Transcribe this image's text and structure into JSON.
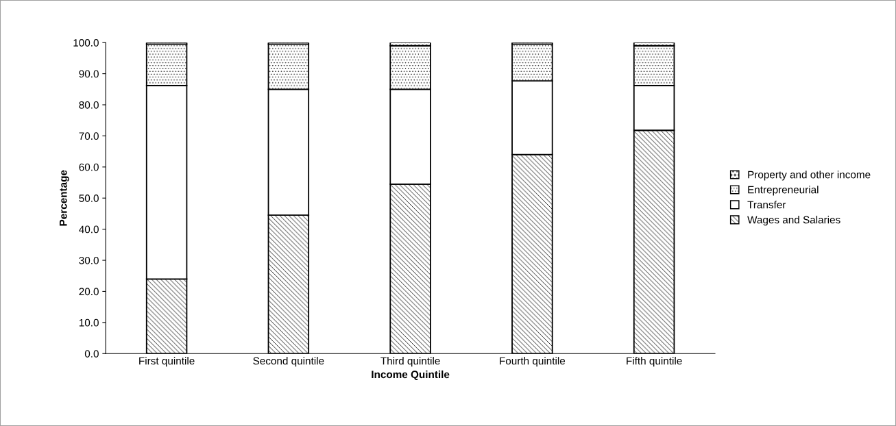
{
  "chart_data": {
    "type": "bar",
    "stacked": true,
    "xlabel": "Income Quintile",
    "ylabel": "Percentage",
    "categories": [
      "First quintile",
      "Second quintile",
      "Third quintile",
      "Fourth quintile",
      "Fifth quintile"
    ],
    "series": [
      {
        "name": "Wages and Salaries",
        "color": "#000000",
        "values": [
          24.0,
          44.5,
          54.5,
          64.0,
          71.8
        ]
      },
      {
        "name": "Transfer",
        "color": "#ffffff",
        "values": [
          62.2,
          40.5,
          30.5,
          23.7,
          14.4
        ]
      },
      {
        "name": "Entrepreneurial",
        "color": "#000000",
        "values": [
          13.3,
          14.5,
          14.0,
          11.8,
          12.8
        ]
      },
      {
        "name": "Property and other income",
        "color": "#000000",
        "values": [
          0.5,
          0.5,
          1.0,
          0.5,
          1.0
        ]
      }
    ],
    "ylim": [
      0,
      100
    ],
    "yticks": [
      {
        "value": 0,
        "label": "0.0"
      },
      {
        "value": 10,
        "label": "10.0"
      },
      {
        "value": 20,
        "label": "20.0"
      },
      {
        "value": 30,
        "label": "30.0"
      },
      {
        "value": 40,
        "label": "40.0"
      },
      {
        "value": 50,
        "label": "50.0"
      },
      {
        "value": 60,
        "label": "60.0"
      },
      {
        "value": 70,
        "label": "70.0"
      },
      {
        "value": 80,
        "label": "80.0"
      },
      {
        "value": 90,
        "label": "90.0"
      },
      {
        "value": 100,
        "label": "100.0"
      }
    ],
    "grid": false,
    "legend": "right"
  }
}
